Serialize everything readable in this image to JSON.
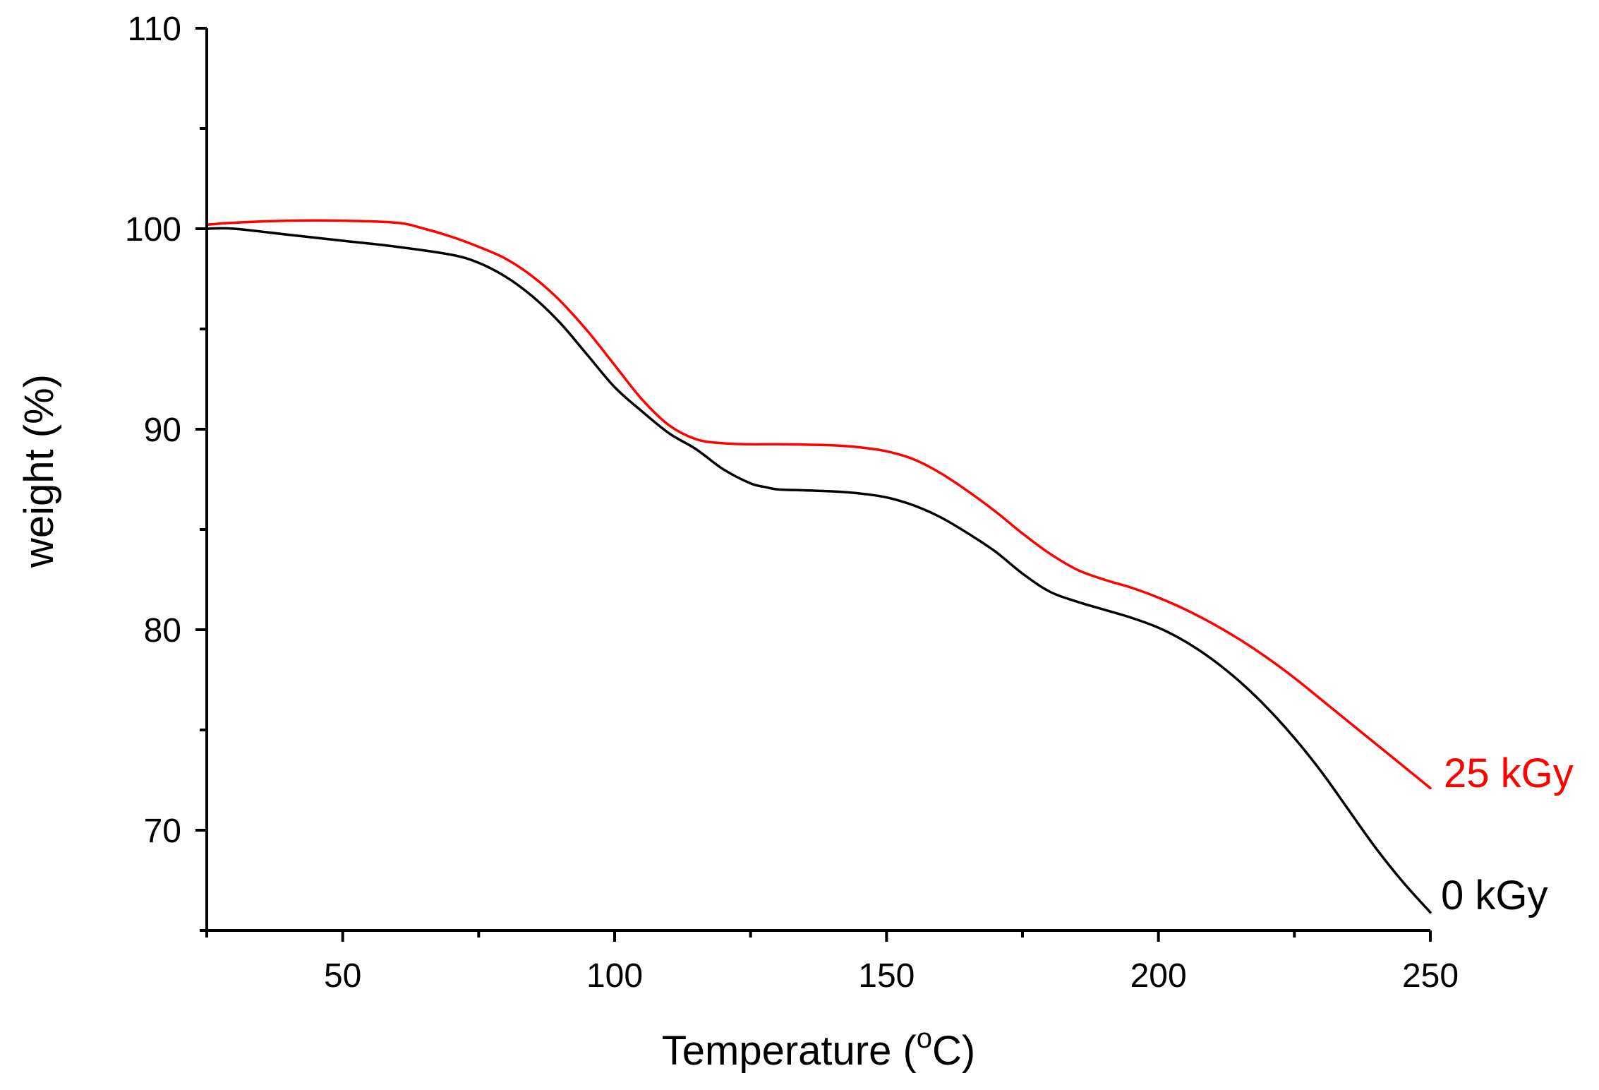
{
  "chart_data": {
    "type": "line",
    "title": "",
    "xlabel": "Temperature (°C)",
    "xlabel_parts": {
      "before": "Temperature (",
      "superscript": "o",
      "after": "C)"
    },
    "ylabel": "weight (%)",
    "xlim": [
      25,
      250
    ],
    "ylim": [
      65,
      110
    ],
    "x_major_ticks": [
      50,
      100,
      150,
      200,
      250
    ],
    "x_minor_ticks": [
      25,
      75,
      125,
      175,
      225
    ],
    "y_major_ticks": [
      70,
      80,
      90,
      100,
      110
    ],
    "y_minor_ticks": [
      65,
      75,
      85,
      95,
      105
    ],
    "grid": false,
    "series": [
      {
        "name": "0 kGy",
        "label": "0 kGy",
        "color": "#000000",
        "x": [
          25,
          30,
          40,
          50,
          60,
          70,
          75,
          80,
          85,
          90,
          95,
          100,
          105,
          110,
          115,
          120,
          125,
          128,
          130,
          135,
          140,
          145,
          150,
          155,
          160,
          165,
          170,
          175,
          180,
          185,
          190,
          195,
          200,
          205,
          210,
          215,
          220,
          225,
          230,
          235,
          240,
          245,
          250
        ],
        "y": [
          100,
          100,
          99.7,
          99.4,
          99.1,
          98.7,
          98.3,
          97.6,
          96.6,
          95.3,
          93.7,
          92.1,
          90.9,
          89.8,
          89.0,
          88.0,
          87.3,
          87.1,
          87.0,
          86.95,
          86.9,
          86.8,
          86.6,
          86.2,
          85.6,
          84.8,
          83.9,
          82.8,
          81.9,
          81.4,
          81.0,
          80.6,
          80.1,
          79.4,
          78.5,
          77.4,
          76.1,
          74.6,
          72.9,
          71.0,
          69.1,
          67.4,
          65.9
        ]
      },
      {
        "name": "25 kGy",
        "label": "25 kGy",
        "color": "#ff0000",
        "x": [
          25,
          30,
          40,
          50,
          60,
          65,
          70,
          75,
          80,
          85,
          90,
          95,
          100,
          105,
          110,
          115,
          120,
          125,
          130,
          140,
          145,
          150,
          155,
          160,
          165,
          170,
          175,
          180,
          185,
          190,
          195,
          200,
          205,
          210,
          215,
          220,
          225,
          230,
          235,
          240,
          245,
          250
        ],
        "y": [
          100.2,
          100.3,
          100.4,
          100.4,
          100.3,
          100.0,
          99.6,
          99.1,
          98.5,
          97.6,
          96.4,
          94.9,
          93.2,
          91.5,
          90.2,
          89.5,
          89.3,
          89.25,
          89.25,
          89.2,
          89.1,
          88.9,
          88.5,
          87.8,
          86.9,
          85.9,
          84.8,
          83.8,
          83.0,
          82.5,
          82.1,
          81.6,
          81.0,
          80.3,
          79.5,
          78.6,
          77.6,
          76.5,
          75.4,
          74.3,
          73.2,
          72.1
        ]
      }
    ]
  }
}
